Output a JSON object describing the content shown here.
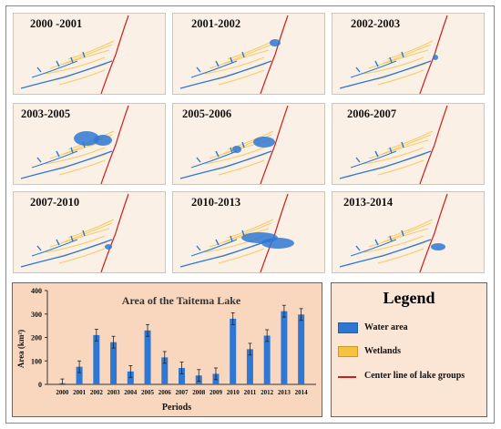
{
  "maps": [
    {
      "label": "2000 -2001"
    },
    {
      "label": "2001-2002"
    },
    {
      "label": "2002-2003"
    },
    {
      "label": "2003-2005"
    },
    {
      "label": "2005-2006"
    },
    {
      "label": "2006-2007"
    },
    {
      "label": "2007-2010"
    },
    {
      "label": "2010-2013"
    },
    {
      "label": "2013-2014"
    }
  ],
  "colors": {
    "water": "#2e78d4",
    "wetland": "#f5c242",
    "centerline": "#cc1f1f",
    "map_bg": "#fbf0e6",
    "chart_bg": "#f8d7be"
  },
  "chart_data": {
    "type": "bar",
    "title": "Area of the Taitema Lake",
    "xlabel": "Periods",
    "ylabel": "Area (km²)",
    "ylim": [
      0,
      400
    ],
    "yticks": [
      0,
      100,
      200,
      300,
      400
    ],
    "grid": false,
    "categories": [
      "2000",
      "2001",
      "2002",
      "2003",
      "2004",
      "2005",
      "2006",
      "2007",
      "2008",
      "2009",
      "2010",
      "2011",
      "2012",
      "2013",
      "2014"
    ],
    "series": [
      {
        "name": "Water area",
        "values": [
          5,
          75,
          210,
          180,
          55,
          230,
          115,
          70,
          38,
          45,
          280,
          150,
          208,
          312,
          298
        ],
        "errors": [
          18,
          25,
          25,
          25,
          25,
          25,
          25,
          25,
          25,
          25,
          25,
          25,
          25,
          25,
          25
        ]
      }
    ]
  },
  "legend": {
    "title": "Legend",
    "items": [
      {
        "label": "Water area",
        "icon": "water-swatch"
      },
      {
        "label": "Wetlands",
        "icon": "wetland-swatch"
      },
      {
        "label": "Center line of lake groups",
        "icon": "centerline-swatch"
      }
    ]
  }
}
